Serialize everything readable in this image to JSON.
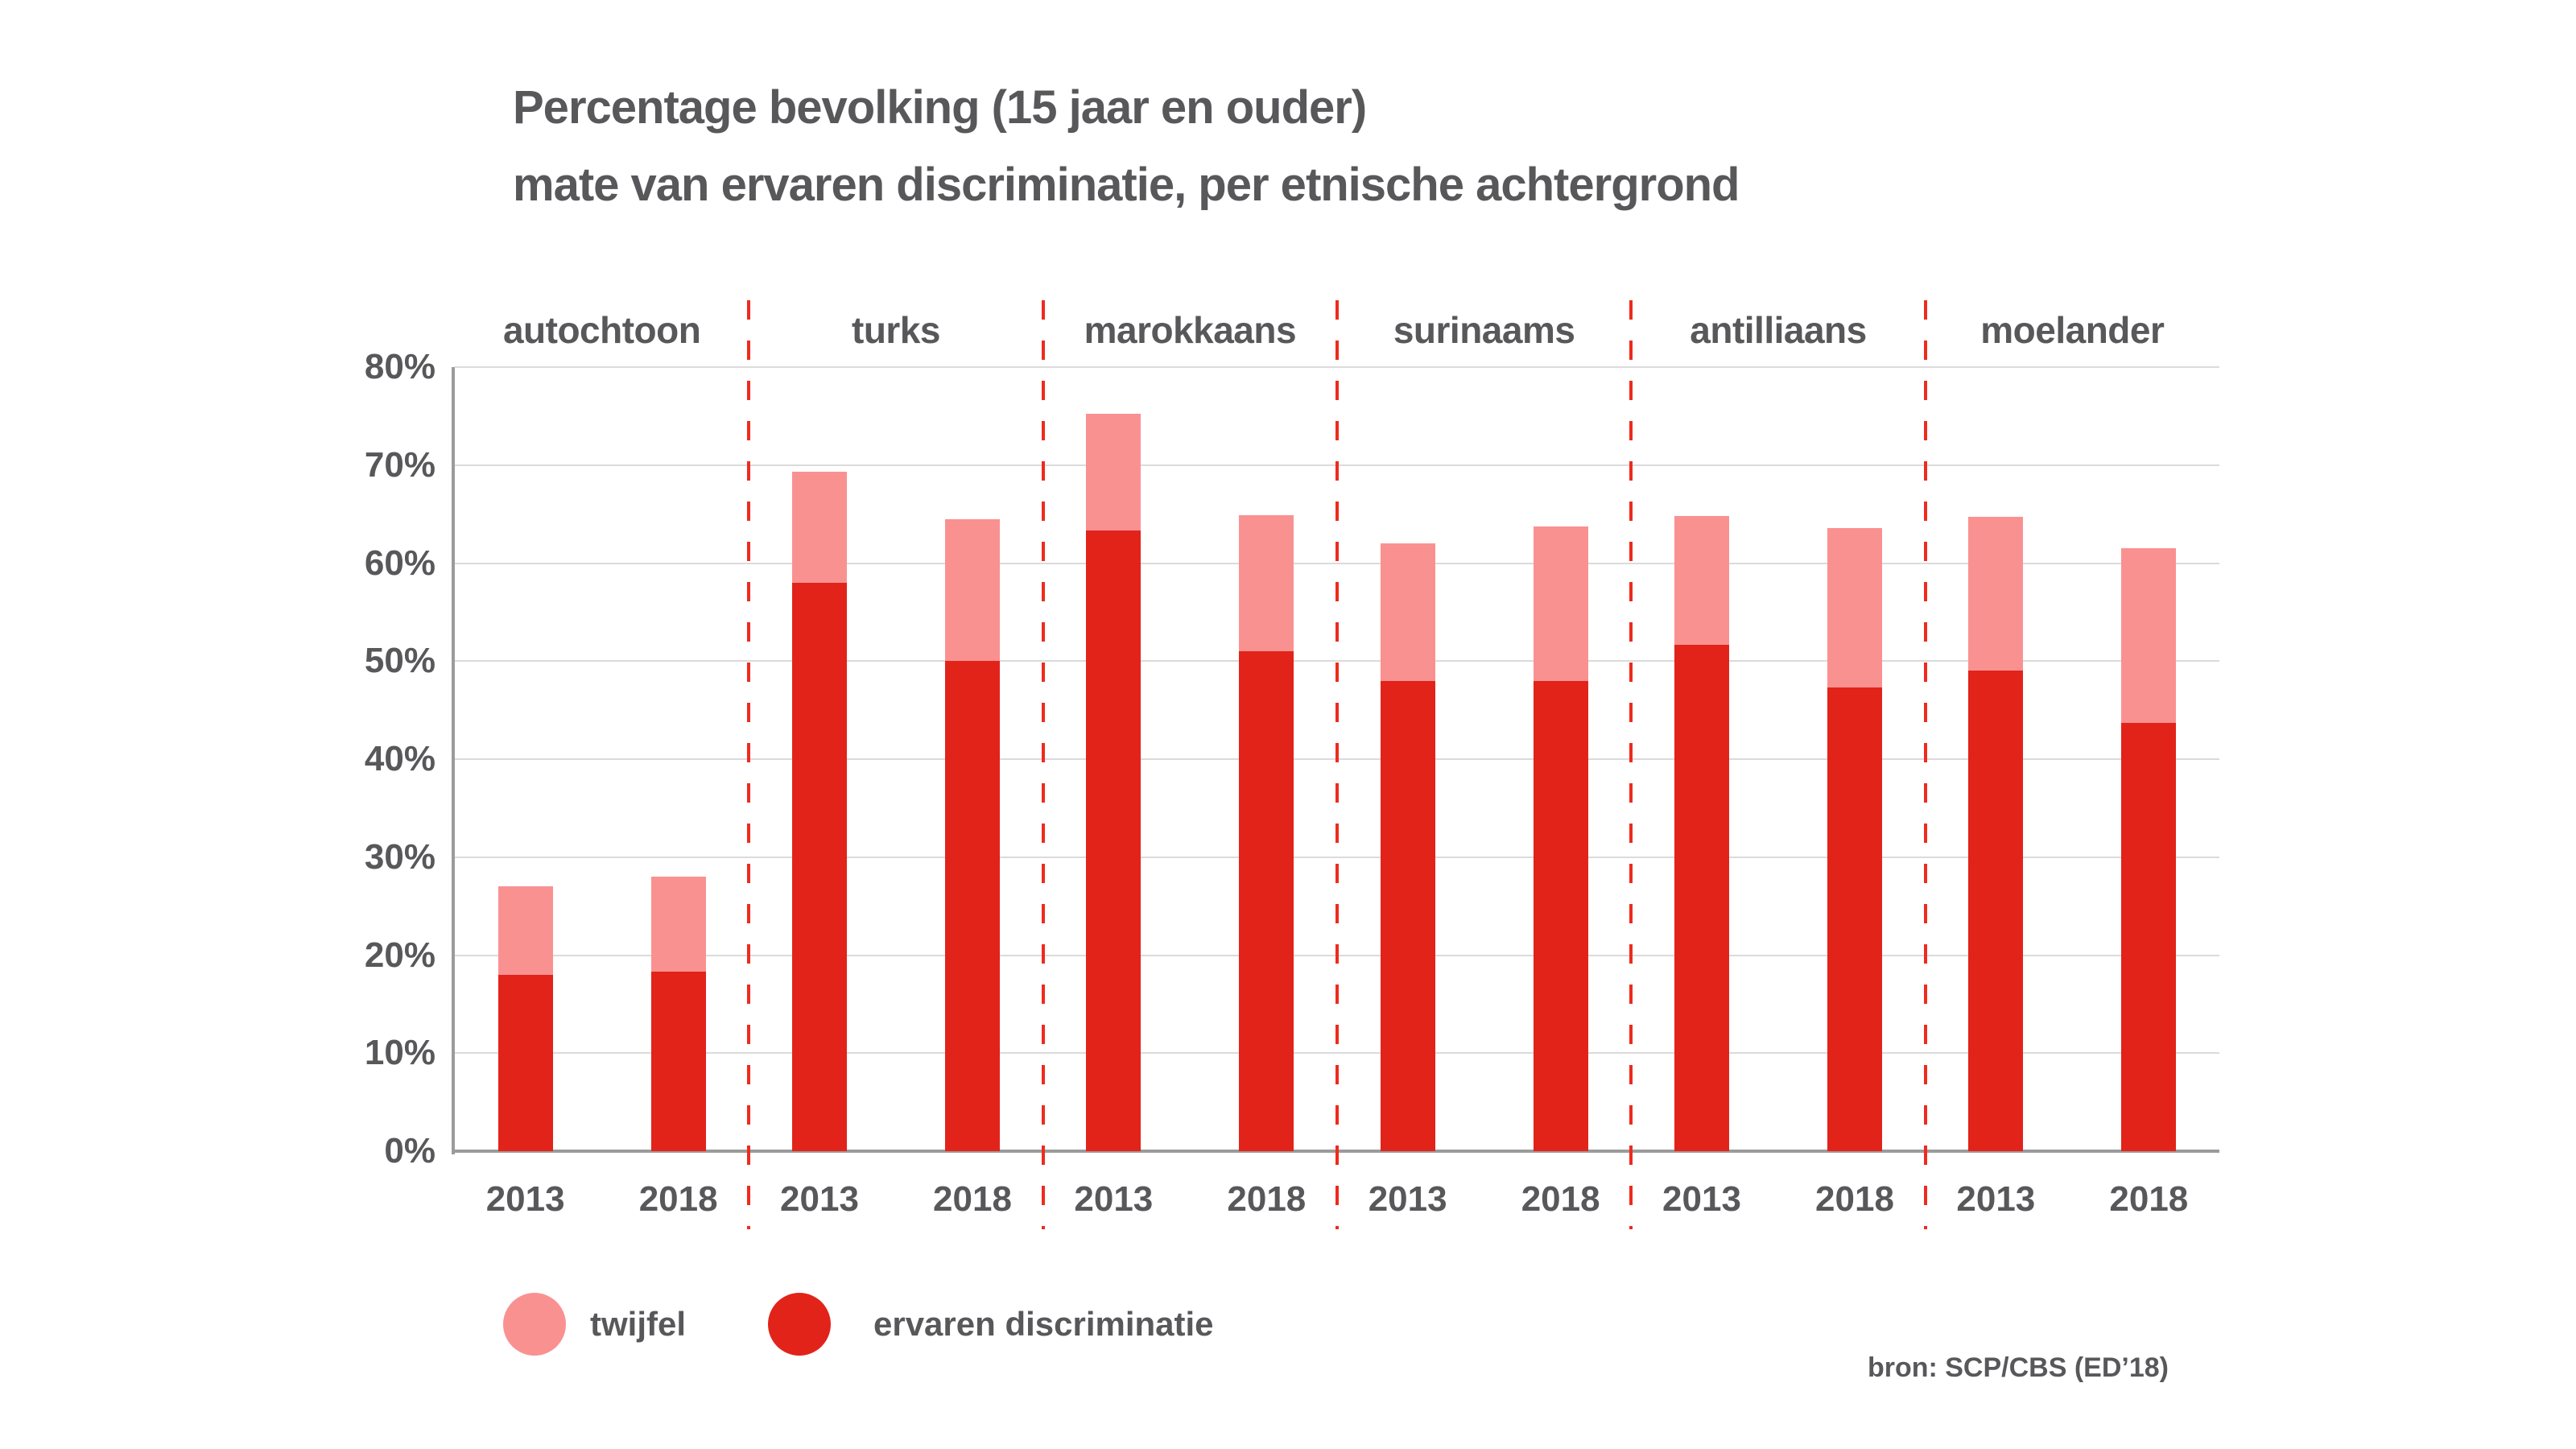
{
  "title": {
    "line1": "Percentage bevolking (15 jaar en ouder)",
    "line2": "mate van ervaren discriminatie, per etnische achtergrond"
  },
  "legend": {
    "items": [
      {
        "label": "twijfel",
        "color": "#FA9191"
      },
      {
        "label": "ervaren discriminatie",
        "color": "#E2231A"
      }
    ]
  },
  "source": "bron: SCP/CBS (ED’18)",
  "chart_data": {
    "type": "bar",
    "stacked": true,
    "title": "Percentage bevolking (15 jaar en ouder) — mate van ervaren discriminatie, per etnische achtergrond",
    "xlabel": "",
    "ylabel": "",
    "ylim": [
      0,
      80
    ],
    "ytick_labels_top_to_bottom": [
      "80%",
      "70%",
      "60%",
      "50%",
      "40%",
      "30%",
      "20%",
      "10%",
      "0%"
    ],
    "grid": true,
    "legend_position": "bottom",
    "series_names": [
      "ervaren discriminatie",
      "twijfel"
    ],
    "colors": {
      "ervaren_discriminatie": "#E2231A",
      "twijfel": "#FA9191",
      "separator": "#EE2B1E",
      "gridline": "#DBDBDB",
      "axis": "#9B9B9B",
      "text": "#58585B"
    },
    "groups": [
      {
        "label": "autochtoon",
        "bars": [
          {
            "year": "2013",
            "ervaren_discriminatie": 18.0,
            "twijfel": 9.0,
            "total": 27.0
          },
          {
            "year": "2018",
            "ervaren_discriminatie": 18.3,
            "twijfel": 9.7,
            "total": 28.0
          }
        ]
      },
      {
        "label": "turks",
        "bars": [
          {
            "year": "2013",
            "ervaren_discriminatie": 58.0,
            "twijfel": 11.3,
            "total": 69.3
          },
          {
            "year": "2018",
            "ervaren_discriminatie": 50.0,
            "twijfel": 14.5,
            "total": 64.5
          }
        ]
      },
      {
        "label": "marokkaans",
        "bars": [
          {
            "year": "2013",
            "ervaren_discriminatie": 63.3,
            "twijfel": 11.9,
            "total": 75.2
          },
          {
            "year": "2018",
            "ervaren_discriminatie": 51.0,
            "twijfel": 13.9,
            "total": 64.9
          }
        ]
      },
      {
        "label": "surinaams",
        "bars": [
          {
            "year": "2013",
            "ervaren_discriminatie": 48.0,
            "twijfel": 14.0,
            "total": 62.0
          },
          {
            "year": "2018",
            "ervaren_discriminatie": 48.0,
            "twijfel": 15.7,
            "total": 63.7
          }
        ]
      },
      {
        "label": "antilliaans",
        "bars": [
          {
            "year": "2013",
            "ervaren_discriminatie": 51.7,
            "twijfel": 13.1,
            "total": 64.8
          },
          {
            "year": "2018",
            "ervaren_discriminatie": 47.3,
            "twijfel": 16.3,
            "total": 63.6
          }
        ]
      },
      {
        "label": "moelander",
        "bars": [
          {
            "year": "2013",
            "ervaren_discriminatie": 49.0,
            "twijfel": 15.7,
            "total": 64.7
          },
          {
            "year": "2018",
            "ervaren_discriminatie": 43.7,
            "twijfel": 17.8,
            "total": 61.5
          }
        ]
      }
    ]
  }
}
